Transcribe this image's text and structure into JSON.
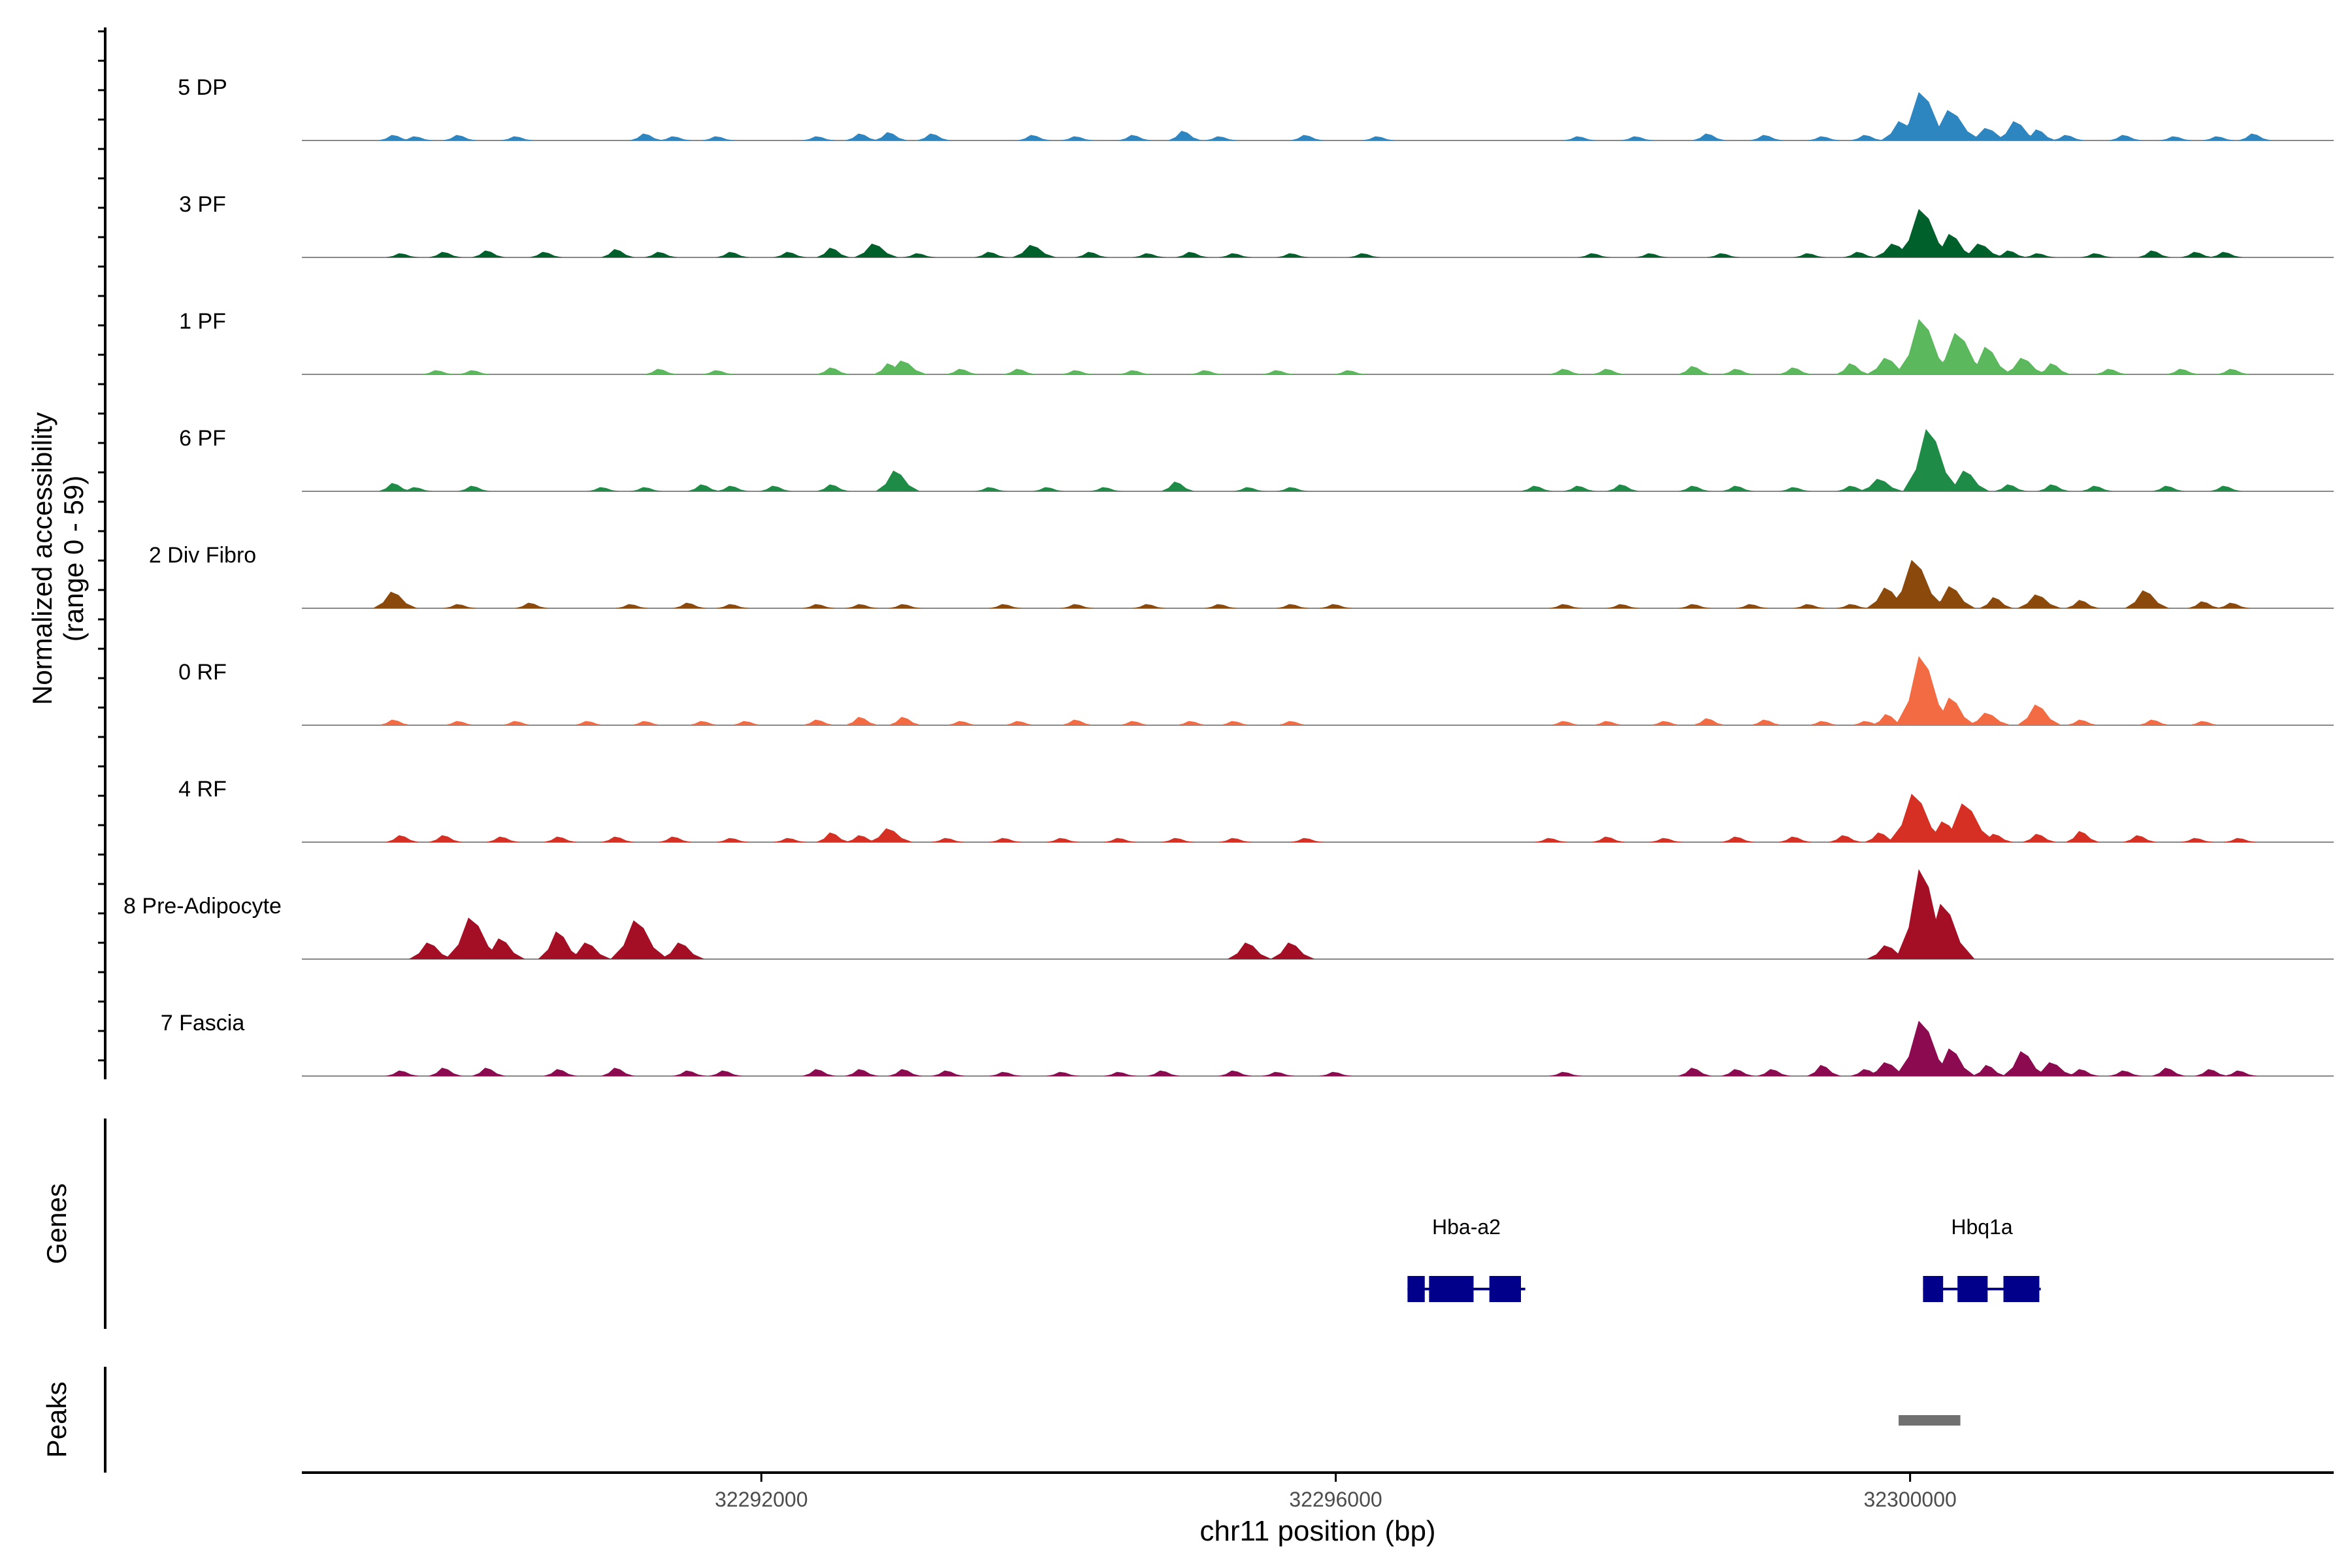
{
  "chart_data": {
    "type": "area",
    "y_axis_title": "Normalized accessibility",
    "y_axis_range_label": "(range 0 - 59)",
    "yrange": [
      0,
      59
    ],
    "x_axis_title": "chr11 position (bp)",
    "xlim": [
      32288800,
      32302950
    ],
    "x_ticks": [
      32292000,
      32296000,
      32300000
    ],
    "x_tick_labels": [
      "32292000",
      "32296000",
      "32300000"
    ],
    "tracks": [
      {
        "name": "5 DP",
        "color": "#2E86C1",
        "peaks": [
          [
            32289450,
            4
          ],
          [
            32289600,
            3
          ],
          [
            32289900,
            4
          ],
          [
            32290300,
            3
          ],
          [
            32291200,
            5
          ],
          [
            32291400,
            3
          ],
          [
            32291700,
            3
          ],
          [
            32292400,
            3
          ],
          [
            32292700,
            5
          ],
          [
            32292900,
            6
          ],
          [
            32293200,
            5
          ],
          [
            32293900,
            4
          ],
          [
            32294200,
            3
          ],
          [
            32294600,
            4
          ],
          [
            32294950,
            7
          ],
          [
            32295200,
            3
          ],
          [
            32295800,
            4
          ],
          [
            32296300,
            3
          ],
          [
            32297700,
            3
          ],
          [
            32298100,
            3
          ],
          [
            32298600,
            5
          ],
          [
            32299000,
            4
          ],
          [
            32299400,
            3
          ],
          [
            32299700,
            4
          ],
          [
            32299950,
            14
          ],
          [
            32300100,
            35
          ],
          [
            32300300,
            22
          ],
          [
            32300550,
            9
          ],
          [
            32300750,
            14
          ],
          [
            32300900,
            8
          ],
          [
            32301100,
            4
          ],
          [
            32301500,
            4
          ],
          [
            32301850,
            3
          ],
          [
            32302150,
            3
          ],
          [
            32302400,
            5
          ]
        ],
        "peak_labels": []
      },
      {
        "name": "3 PF",
        "color": "#00602C",
        "peaks": [
          [
            32289500,
            3
          ],
          [
            32289800,
            4
          ],
          [
            32290100,
            5
          ],
          [
            32290500,
            4
          ],
          [
            32291000,
            6
          ],
          [
            32291300,
            4
          ],
          [
            32291800,
            4
          ],
          [
            32292200,
            4
          ],
          [
            32292500,
            7
          ],
          [
            32292800,
            10
          ],
          [
            32293100,
            3
          ],
          [
            32293600,
            4
          ],
          [
            32293900,
            9
          ],
          [
            32294300,
            4
          ],
          [
            32294700,
            3
          ],
          [
            32295000,
            4
          ],
          [
            32295300,
            3
          ],
          [
            32295700,
            3
          ],
          [
            32296200,
            3
          ],
          [
            32297800,
            3
          ],
          [
            32298200,
            3
          ],
          [
            32298700,
            3
          ],
          [
            32299300,
            3
          ],
          [
            32299650,
            4
          ],
          [
            32299900,
            10
          ],
          [
            32300100,
            35
          ],
          [
            32300300,
            17
          ],
          [
            32300500,
            10
          ],
          [
            32300700,
            5
          ],
          [
            32300900,
            3
          ],
          [
            32301300,
            3
          ],
          [
            32301700,
            5
          ],
          [
            32302000,
            4
          ],
          [
            32302200,
            4
          ]
        ],
        "peak_labels": []
      },
      {
        "name": "1 PF",
        "color": "#5CB85C",
        "peaks": [
          [
            32289750,
            3
          ],
          [
            32290000,
            3
          ],
          [
            32291300,
            4
          ],
          [
            32291700,
            3
          ],
          [
            32292500,
            5
          ],
          [
            32292900,
            8
          ],
          [
            32293000,
            10
          ],
          [
            32293400,
            4
          ],
          [
            32293800,
            4
          ],
          [
            32294200,
            3
          ],
          [
            32294600,
            3
          ],
          [
            32295100,
            3
          ],
          [
            32295600,
            3
          ],
          [
            32296100,
            3
          ],
          [
            32297600,
            4
          ],
          [
            32297900,
            4
          ],
          [
            32298500,
            6
          ],
          [
            32298800,
            4
          ],
          [
            32299200,
            5
          ],
          [
            32299600,
            8
          ],
          [
            32299850,
            12
          ],
          [
            32300100,
            40
          ],
          [
            32300350,
            30
          ],
          [
            32300550,
            20
          ],
          [
            32300800,
            12
          ],
          [
            32301000,
            8
          ],
          [
            32301400,
            4
          ],
          [
            32301900,
            4
          ],
          [
            32302250,
            4
          ]
        ],
        "peak_labels": []
      },
      {
        "name": "6 PF",
        "color": "#1E8C46",
        "peaks": [
          [
            32289450,
            6
          ],
          [
            32289600,
            3
          ],
          [
            32290000,
            4
          ],
          [
            32290900,
            3
          ],
          [
            32291200,
            3
          ],
          [
            32291600,
            5
          ],
          [
            32291800,
            4
          ],
          [
            32292100,
            4
          ],
          [
            32292500,
            5
          ],
          [
            32292950,
            15
          ],
          [
            32293600,
            3
          ],
          [
            32294000,
            3
          ],
          [
            32294400,
            3
          ],
          [
            32294900,
            7
          ],
          [
            32295400,
            3
          ],
          [
            32295700,
            3
          ],
          [
            32297400,
            4
          ],
          [
            32297700,
            4
          ],
          [
            32298000,
            5
          ],
          [
            32298500,
            4
          ],
          [
            32298800,
            4
          ],
          [
            32299200,
            3
          ],
          [
            32299600,
            4
          ],
          [
            32299800,
            9
          ],
          [
            32300150,
            45
          ],
          [
            32300400,
            15
          ],
          [
            32300700,
            5
          ],
          [
            32301000,
            5
          ],
          [
            32301300,
            4
          ],
          [
            32301800,
            4
          ],
          [
            32302200,
            4
          ]
        ],
        "peak_labels": []
      },
      {
        "name": "2 Div Fibro",
        "color": "#8B4A0B",
        "peaks": [
          [
            32289450,
            12
          ],
          [
            32289900,
            3
          ],
          [
            32290400,
            4
          ],
          [
            32291100,
            3
          ],
          [
            32291500,
            4
          ],
          [
            32291800,
            3
          ],
          [
            32292400,
            3
          ],
          [
            32292700,
            3
          ],
          [
            32293000,
            3
          ],
          [
            32293700,
            3
          ],
          [
            32294200,
            3
          ],
          [
            32294700,
            3
          ],
          [
            32295200,
            3
          ],
          [
            32295700,
            3
          ],
          [
            32296000,
            3
          ],
          [
            32297600,
            3
          ],
          [
            32298000,
            3
          ],
          [
            32298500,
            3
          ],
          [
            32298900,
            3
          ],
          [
            32299300,
            3
          ],
          [
            32299600,
            3
          ],
          [
            32299850,
            15
          ],
          [
            32300050,
            35
          ],
          [
            32300300,
            16
          ],
          [
            32300600,
            8
          ],
          [
            32300900,
            10
          ],
          [
            32301200,
            6
          ],
          [
            32301650,
            13
          ],
          [
            32302050,
            5
          ],
          [
            32302250,
            4
          ]
        ],
        "peak_labels": []
      },
      {
        "name": "0 RF",
        "color": "#F26B43",
        "peaks": [
          [
            32289450,
            4
          ],
          [
            32289900,
            3
          ],
          [
            32290300,
            3
          ],
          [
            32290800,
            3
          ],
          [
            32291200,
            3
          ],
          [
            32291600,
            3
          ],
          [
            32291900,
            3
          ],
          [
            32292400,
            4
          ],
          [
            32292700,
            6
          ],
          [
            32293000,
            6
          ],
          [
            32293400,
            3
          ],
          [
            32293800,
            3
          ],
          [
            32294200,
            4
          ],
          [
            32294600,
            3
          ],
          [
            32295000,
            3
          ],
          [
            32295300,
            3
          ],
          [
            32295700,
            3
          ],
          [
            32297600,
            3
          ],
          [
            32297900,
            3
          ],
          [
            32298300,
            3
          ],
          [
            32298600,
            5
          ],
          [
            32299000,
            4
          ],
          [
            32299400,
            3
          ],
          [
            32299700,
            3
          ],
          [
            32299850,
            8
          ],
          [
            32300100,
            50
          ],
          [
            32300300,
            20
          ],
          [
            32300550,
            9
          ],
          [
            32300900,
            15
          ],
          [
            32301200,
            4
          ],
          [
            32301700,
            4
          ],
          [
            32302050,
            3
          ]
        ],
        "peak_labels": []
      },
      {
        "name": "4 RF",
        "color": "#D63024",
        "peaks": [
          [
            32289500,
            5
          ],
          [
            32289800,
            5
          ],
          [
            32290200,
            4
          ],
          [
            32290600,
            4
          ],
          [
            32291000,
            4
          ],
          [
            32291400,
            4
          ],
          [
            32291800,
            3
          ],
          [
            32292200,
            3
          ],
          [
            32292500,
            7
          ],
          [
            32292700,
            5
          ],
          [
            32292900,
            10
          ],
          [
            32293300,
            3
          ],
          [
            32293700,
            3
          ],
          [
            32294100,
            3
          ],
          [
            32294500,
            3
          ],
          [
            32294900,
            3
          ],
          [
            32295300,
            3
          ],
          [
            32295800,
            3
          ],
          [
            32297500,
            3
          ],
          [
            32297900,
            4
          ],
          [
            32298300,
            3
          ],
          [
            32298800,
            4
          ],
          [
            32299200,
            4
          ],
          [
            32299550,
            5
          ],
          [
            32299800,
            7
          ],
          [
            32300050,
            35
          ],
          [
            32300250,
            15
          ],
          [
            32300400,
            28
          ],
          [
            32300600,
            6
          ],
          [
            32300900,
            6
          ],
          [
            32301200,
            8
          ],
          [
            32301600,
            5
          ],
          [
            32302000,
            3
          ],
          [
            32302300,
            3
          ]
        ],
        "peak_labels": []
      },
      {
        "name": "8 Pre-Adipocyte",
        "color": "#A50F26",
        "peaks": [
          [
            32289700,
            12
          ],
          [
            32290000,
            30
          ],
          [
            32290200,
            15
          ],
          [
            32290600,
            20
          ],
          [
            32290800,
            12
          ],
          [
            32291150,
            28
          ],
          [
            32291450,
            12
          ],
          [
            32295400,
            12
          ],
          [
            32295700,
            12
          ],
          [
            32299850,
            10
          ],
          [
            32300100,
            65
          ],
          [
            32300250,
            40
          ]
        ],
        "peak_labels": []
      },
      {
        "name": "7 Fascia",
        "color": "#8B0A50",
        "peaks": [
          [
            32289500,
            4
          ],
          [
            32289800,
            6
          ],
          [
            32290100,
            6
          ],
          [
            32290600,
            5
          ],
          [
            32291000,
            6
          ],
          [
            32291500,
            4
          ],
          [
            32291750,
            4
          ],
          [
            32292400,
            5
          ],
          [
            32292700,
            5
          ],
          [
            32293000,
            5
          ],
          [
            32293300,
            4
          ],
          [
            32293700,
            3
          ],
          [
            32294100,
            3
          ],
          [
            32294500,
            3
          ],
          [
            32294800,
            4
          ],
          [
            32295300,
            4
          ],
          [
            32295600,
            3
          ],
          [
            32296000,
            3
          ],
          [
            32297600,
            3
          ],
          [
            32298500,
            6
          ],
          [
            32298800,
            5
          ],
          [
            32299050,
            5
          ],
          [
            32299400,
            8
          ],
          [
            32299700,
            5
          ],
          [
            32299850,
            10
          ],
          [
            32300100,
            40
          ],
          [
            32300300,
            20
          ],
          [
            32300550,
            8
          ],
          [
            32300800,
            18
          ],
          [
            32301000,
            10
          ],
          [
            32301200,
            5
          ],
          [
            32301500,
            4
          ],
          [
            32301800,
            6
          ],
          [
            32302100,
            5
          ],
          [
            32302300,
            4
          ]
        ],
        "peak_labels": []
      }
    ],
    "genes_label": "Genes",
    "genes": [
      {
        "name": "Hba-a2",
        "start": 32296500,
        "end": 32297320,
        "exons": [
          [
            32296500,
            32296620
          ],
          [
            32296650,
            32296960
          ],
          [
            32297070,
            32297290
          ]
        ]
      },
      {
        "name": "Hbq1a",
        "start": 32300090,
        "end": 32300910,
        "exons": [
          [
            32300090,
            32300230
          ],
          [
            32300330,
            32300540
          ],
          [
            32300650,
            32300900
          ]
        ]
      }
    ],
    "peaks_label": "Peaks",
    "peak_regions": [
      [
        32299920,
        32300350
      ]
    ],
    "colors": {
      "axis": "#000000",
      "baseline": "#888888",
      "gene": "#00008B",
      "peak_region": "#707070",
      "tick_label": "#4D4D4D"
    },
    "grid": false,
    "legend": "none"
  }
}
